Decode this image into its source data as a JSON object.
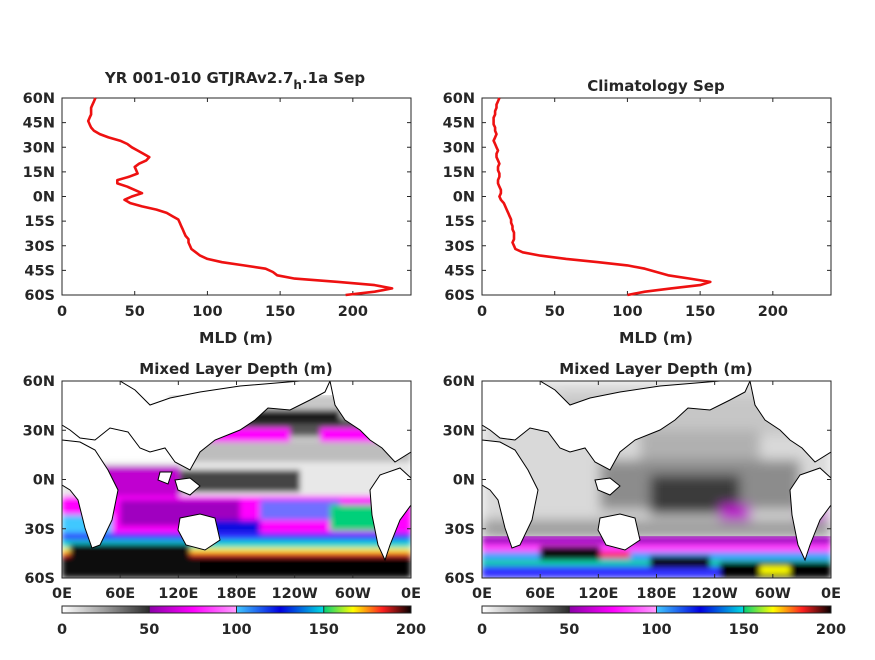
{
  "chart_data": [
    {
      "type": "line",
      "title_main": "YR 001-010 GTJRAv2.7",
      "title_sub": "h",
      "title_tail": ".1a Sep",
      "xlabel": "MLD (m)",
      "ylabel": "",
      "xlim": [
        0,
        240
      ],
      "ylim": [
        -60,
        60
      ],
      "xticks": [
        "0",
        "50",
        "100",
        "150",
        "200"
      ],
      "yticks": [
        "60N",
        "45N",
        "30N",
        "15N",
        "0N",
        "15S",
        "30S",
        "45S",
        "60S"
      ],
      "color": "#ee1111",
      "series": [
        {
          "lat": [
            60,
            58,
            56,
            54,
            52,
            50,
            48,
            46,
            44,
            42,
            40,
            38,
            36,
            34,
            32,
            30,
            28,
            26,
            24,
            22,
            20,
            18,
            16,
            14,
            12,
            10,
            8,
            6,
            4,
            2,
            0,
            -2,
            -4,
            -6,
            -8,
            -10,
            -12,
            -14,
            -16,
            -18,
            -20,
            -22,
            -24,
            -26,
            -28,
            -30,
            -32,
            -34,
            -36,
            -38,
            -40,
            -42,
            -44,
            -46,
            -48,
            -50,
            -52,
            -54,
            -56,
            -58,
            -60
          ],
          "mld": [
            23,
            22,
            21,
            20,
            20,
            20,
            19,
            18,
            19,
            20,
            22,
            26,
            32,
            40,
            45,
            48,
            52,
            56,
            60,
            58,
            53,
            50,
            51,
            52,
            46,
            38,
            38,
            45,
            50,
            55,
            48,
            43,
            47,
            55,
            65,
            72,
            76,
            80,
            81,
            82,
            83,
            84,
            85,
            87,
            87,
            88,
            89,
            92,
            95,
            100,
            110,
            125,
            140,
            145,
            148,
            160,
            190,
            215,
            227,
            215,
            195
          ]
        }
      ]
    },
    {
      "type": "line",
      "title_main": "Climatology Sep",
      "xlabel": "MLD (m)",
      "ylabel": "",
      "xlim": [
        0,
        240
      ],
      "ylim": [
        -60,
        60
      ],
      "xticks": [
        "0",
        "50",
        "100",
        "150",
        "200"
      ],
      "yticks": [
        "60N",
        "45N",
        "30N",
        "15N",
        "0N",
        "15S",
        "30S",
        "45S",
        "60S"
      ],
      "color": "#ee1111",
      "series": [
        {
          "lat": [
            60,
            58,
            56,
            54,
            52,
            50,
            48,
            46,
            44,
            42,
            40,
            38,
            36,
            34,
            32,
            30,
            28,
            26,
            24,
            22,
            20,
            18,
            16,
            14,
            12,
            10,
            8,
            6,
            4,
            2,
            0,
            -2,
            -4,
            -6,
            -8,
            -10,
            -12,
            -14,
            -16,
            -18,
            -20,
            -22,
            -24,
            -26,
            -28,
            -30,
            -32,
            -34,
            -36,
            -38,
            -40,
            -42,
            -44,
            -46,
            -48,
            -50,
            -52,
            -54,
            -56,
            -58,
            -60
          ],
          "mld": [
            12,
            11,
            10,
            10,
            9,
            9,
            8,
            8,
            8,
            9,
            9,
            10,
            9,
            8,
            9,
            10,
            11,
            10,
            10,
            11,
            12,
            11,
            11,
            12,
            12,
            11,
            11,
            12,
            13,
            13,
            12,
            13,
            15,
            16,
            17,
            18,
            19,
            20,
            20,
            21,
            21,
            22,
            22,
            22,
            21,
            22,
            23,
            28,
            40,
            58,
            80,
            100,
            112,
            120,
            128,
            143,
            157,
            150,
            130,
            112,
            100
          ]
        }
      ]
    },
    {
      "type": "heatmap",
      "title": "Mixed Layer Depth (m)",
      "xticks": [
        "0E",
        "60E",
        "120E",
        "180E",
        "120W",
        "60W",
        "0E"
      ],
      "yticks": [
        "60N",
        "30N",
        "0N",
        "30S",
        "60S"
      ],
      "colorbar_ticks": [
        "0",
        "50",
        "100",
        "150",
        "200"
      ],
      "colorbar_range": [
        0,
        200
      ],
      "colormap": [
        "#ffffff",
        "#9a9a9a",
        "#2a2a2a",
        "#8a00a8",
        "#ff00ff",
        "#ffa0ff",
        "#40c8ff",
        "#0000e0",
        "#00e0e0",
        "#00d07a",
        "#ffff00",
        "#ff2020",
        "#000000"
      ]
    },
    {
      "type": "heatmap",
      "title": "Mixed Layer Depth (m)",
      "xticks": [
        "0E",
        "60E",
        "120E",
        "180E",
        "120W",
        "60W",
        "0E"
      ],
      "yticks": [
        "60N",
        "30N",
        "0N",
        "30S",
        "60S"
      ],
      "colorbar_ticks": [
        "0",
        "50",
        "100",
        "150",
        "200"
      ],
      "colorbar_range": [
        0,
        200
      ],
      "colormap": [
        "#ffffff",
        "#9a9a9a",
        "#2a2a2a",
        "#8a00a8",
        "#ff00ff",
        "#ffa0ff",
        "#40c8ff",
        "#0000e0",
        "#00e0e0",
        "#00d07a",
        "#ffff00",
        "#ff2020",
        "#000000"
      ]
    }
  ]
}
